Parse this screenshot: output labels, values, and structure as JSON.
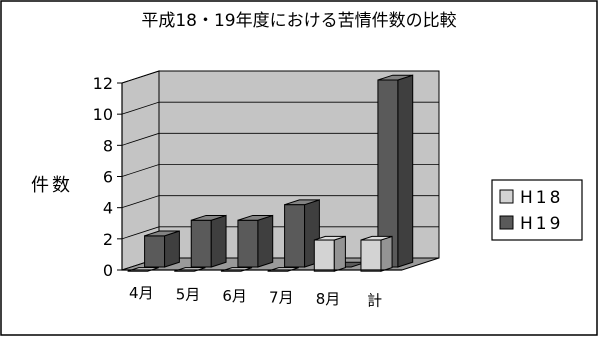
{
  "chart_data": {
    "type": "bar",
    "title": "平成18・19年度における苦情件数の比較",
    "xlabel": "",
    "ylabel": "件数",
    "categories": [
      "4月",
      "5月",
      "6月",
      "7月",
      "8月",
      "計"
    ],
    "series": [
      {
        "name": "H18",
        "values": [
          0,
          0,
          0,
          0,
          2,
          2
        ]
      },
      {
        "name": "H19",
        "values": [
          2,
          3,
          3,
          4,
          0,
          12
        ]
      }
    ],
    "yticks": [
      "0",
      "2",
      "4",
      "6",
      "8",
      "10",
      "12"
    ],
    "ylim": [
      0,
      12
    ],
    "grid": true,
    "legend": "right",
    "colors": {
      "H18": "#d3d3d3",
      "H19": "#5a5a5a",
      "wall": "#c4c4c4",
      "floor": "#9a9a9a",
      "border": "#000000"
    }
  }
}
